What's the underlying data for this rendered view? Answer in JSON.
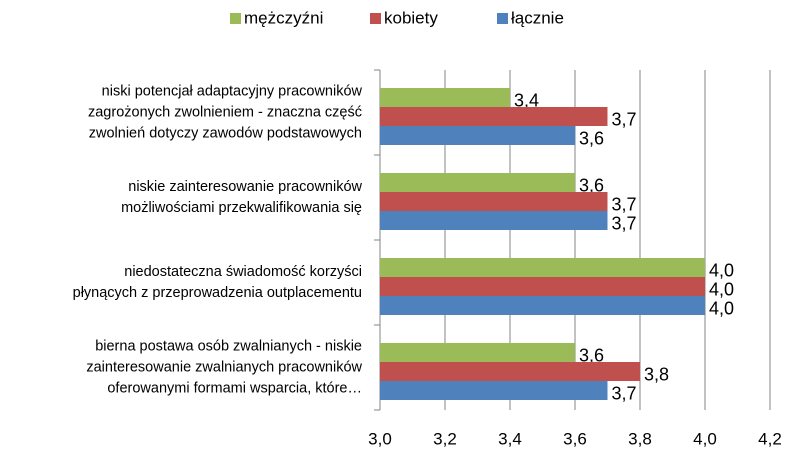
{
  "chart_data": {
    "type": "bar",
    "orientation": "horizontal",
    "categories": [
      [
        "niski potencjał adaptacyjny pracowników",
        "zagrożonych zwolnieniem - znaczna część",
        "zwolnień dotyczy zawodów podstawowych"
      ],
      [
        "niskie zainteresowanie pracowników",
        "możliwościami przekwalifikowania się"
      ],
      [
        "niedostateczna świadomość korzyści",
        "płynących z przeprowadzenia outplacementu"
      ],
      [
        "bierna postawa osób zwalnianych - niskie",
        "zainteresowanie zwalnianych pracowników",
        "oferowanymi formami wsparcia, które…"
      ]
    ],
    "series": [
      {
        "name": "mężczyźni",
        "color": "#9bbb59",
        "values": [
          3.4,
          3.6,
          4.0,
          3.6
        ],
        "value_labels": [
          "3,4",
          "3,6",
          "4,0",
          "3,6"
        ]
      },
      {
        "name": "kobiety",
        "color": "#c0504d",
        "values": [
          3.7,
          3.7,
          4.0,
          3.8
        ],
        "value_labels": [
          "3,7",
          "3,7",
          "4,0",
          "3,8"
        ]
      },
      {
        "name": "łącznie",
        "color": "#4f81bd",
        "values": [
          3.6,
          3.7,
          4.0,
          3.7
        ],
        "value_labels": [
          "3,6",
          "3,7",
          "4,0",
          "3,7"
        ]
      }
    ],
    "xlim": [
      3.0,
      4.2
    ],
    "xticks": [
      {
        "value": 3.0,
        "label": "3,0"
      },
      {
        "value": 3.2,
        "label": "3,2"
      },
      {
        "value": 3.4,
        "label": "3,4"
      },
      {
        "value": 3.6,
        "label": "3,6"
      },
      {
        "value": 3.8,
        "label": "3,8"
      },
      {
        "value": 4.0,
        "label": "4,0"
      },
      {
        "value": 4.2,
        "label": "4,2"
      }
    ],
    "grid": true,
    "legend": "top"
  }
}
